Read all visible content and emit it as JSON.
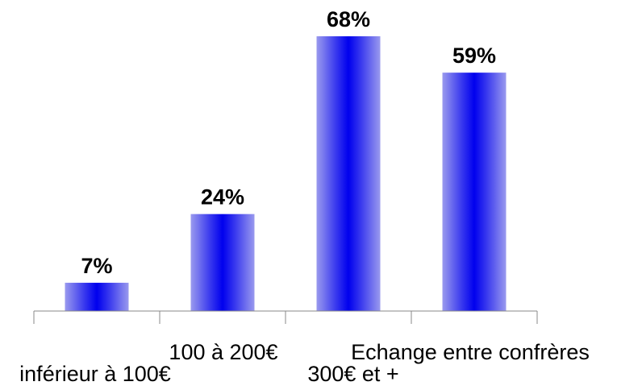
{
  "chart_data": {
    "type": "bar",
    "categories": [
      "inférieur à 100€",
      "100 à 200€",
      "300€ et +",
      "Echange entre confrères"
    ],
    "values": [
      7,
      24,
      68,
      59
    ],
    "value_labels": [
      "7%",
      "24%",
      "68%",
      "59%"
    ],
    "title": "",
    "xlabel": "",
    "ylabel": "",
    "ylim": [
      0,
      70
    ],
    "grid": false,
    "legend": "none",
    "colors": {
      "bar_center": "#0000ee",
      "bar_edge": "#9a9aee",
      "axis": "#888888",
      "text": "#000000"
    }
  }
}
